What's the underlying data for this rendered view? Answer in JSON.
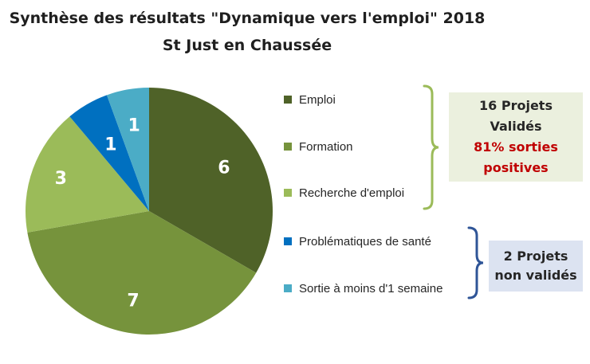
{
  "chart_data": {
    "type": "pie",
    "title": "Synthèse des résultats \"Dynamique vers l'emploi\" 2018",
    "subtitle": "St Just en Chaussée",
    "categories": [
      "Emploi",
      "Formation",
      "Recherche d'emploi",
      "Problématiques de santé",
      "Sortie à moins d'1 semaine"
    ],
    "values": [
      6,
      7,
      3,
      1,
      1
    ],
    "colors": [
      "#4f6228",
      "#76933c",
      "#9bbb59",
      "#0070c0",
      "#4bacc6"
    ],
    "legend_position": "right",
    "start": "12 o'clock, clockwise"
  },
  "annotations": {
    "valid": {
      "line1": "16 Projets",
      "line2": "Validés",
      "line3": "81%  sorties",
      "line4": "positives",
      "bracket_color": "#9bbb59",
      "text_color": "#c00000"
    },
    "non_valid": {
      "line1": "2 Projets",
      "line2": "non validés",
      "bracket_color": "#2f5597"
    }
  }
}
